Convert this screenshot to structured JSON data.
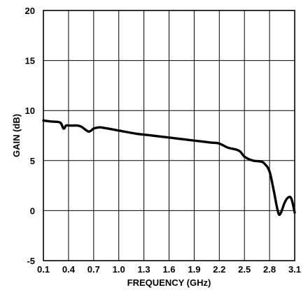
{
  "chart_data": {
    "type": "line",
    "title": "",
    "xlabel": "FREQUENCY (GHz)",
    "ylabel": "GAIN (dB)",
    "xlim": [
      0.1,
      3.1
    ],
    "ylim": [
      -5,
      20
    ],
    "x_ticks": [
      0.1,
      0.4,
      0.7,
      1.0,
      1.3,
      1.6,
      1.9,
      2.2,
      2.5,
      2.8,
      3.1
    ],
    "x_tick_labels": [
      "0.1",
      "0.4",
      "0.7",
      "1.0",
      "1.3",
      "1.6",
      "1.9",
      "2.2",
      "2.5",
      "2.8",
      "3.1"
    ],
    "y_ticks": [
      -5,
      0,
      5,
      10,
      15,
      20
    ],
    "y_tick_labels": [
      "-5",
      "0",
      "5",
      "10",
      "15",
      "20"
    ],
    "grid": true,
    "series": [
      {
        "x": [
          0.1,
          0.2,
          0.3,
          0.34,
          0.37,
          0.4,
          0.45,
          0.5,
          0.55,
          0.6,
          0.64,
          0.67,
          0.7,
          0.75,
          0.8,
          1.0,
          1.2,
          1.4,
          1.6,
          1.8,
          2.0,
          2.1,
          2.2,
          2.3,
          2.4,
          2.45,
          2.5,
          2.6,
          2.7,
          2.75,
          2.8,
          2.85,
          2.9,
          2.93,
          2.98,
          3.02,
          3.06,
          3.1
        ],
        "y": [
          9.0,
          8.9,
          8.8,
          8.2,
          8.5,
          8.5,
          8.5,
          8.5,
          8.4,
          8.1,
          7.9,
          8.0,
          8.2,
          8.3,
          8.3,
          8.0,
          7.7,
          7.5,
          7.3,
          7.1,
          6.9,
          6.8,
          6.7,
          6.3,
          6.1,
          5.9,
          5.4,
          5.0,
          4.9,
          4.6,
          3.9,
          2.0,
          -0.1,
          -0.3,
          0.8,
          1.3,
          1.2,
          -0.2
        ]
      }
    ]
  }
}
